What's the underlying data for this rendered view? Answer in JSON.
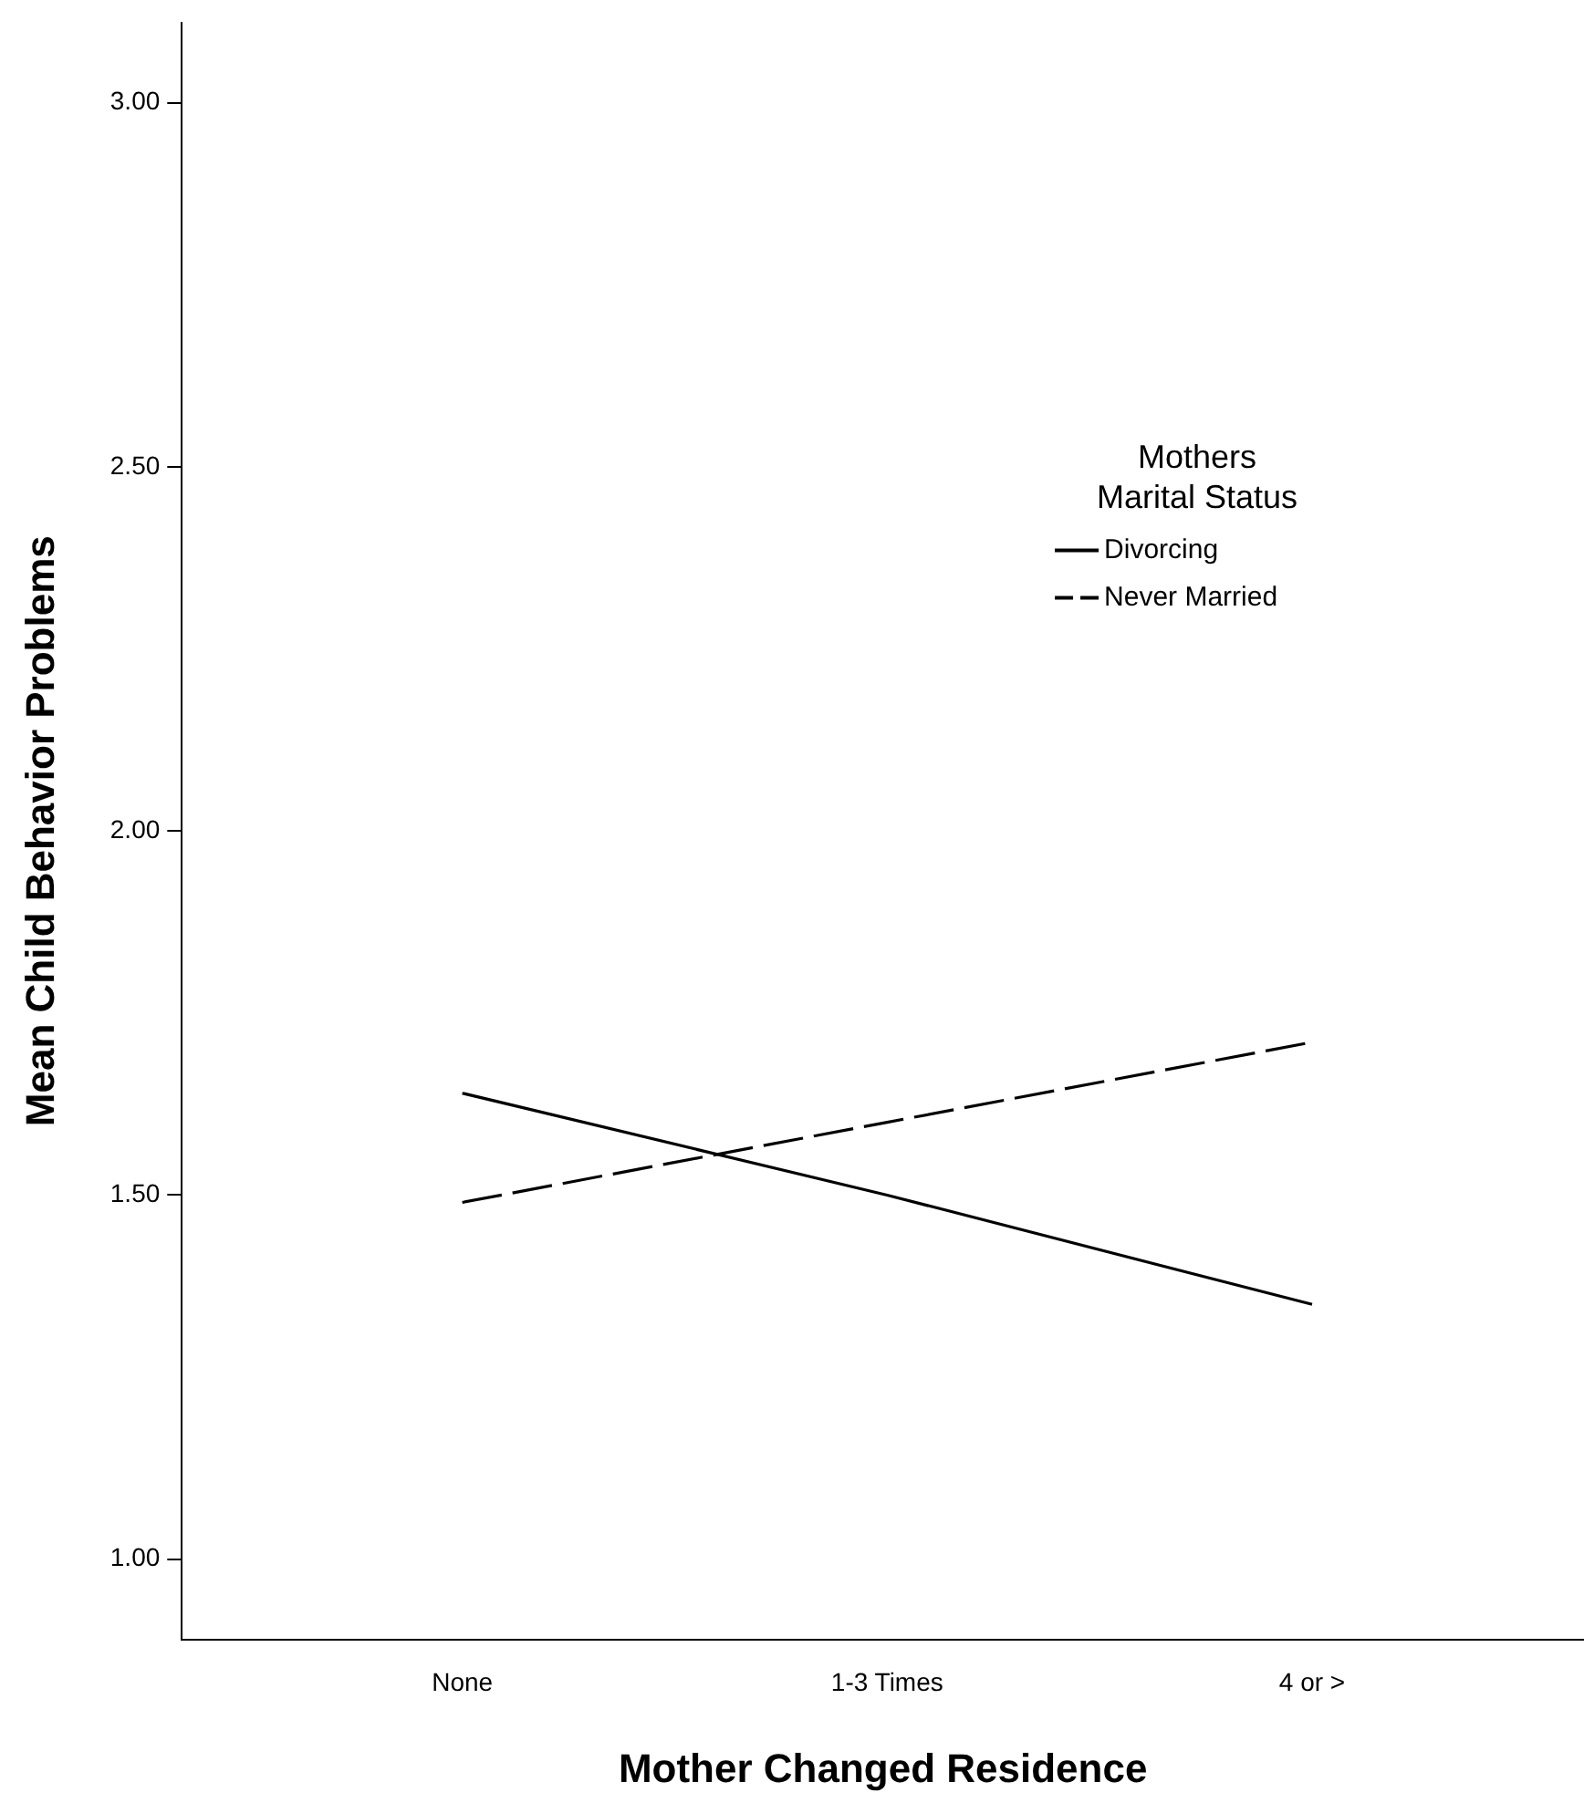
{
  "chart_data": {
    "type": "line",
    "xlabel": "Mother Changed Residence",
    "ylabel": "Mean Child Behavior Problems",
    "legend_title": "Mothers\nMarital Status",
    "categories": [
      "None",
      "1-3 Times",
      "4 or >"
    ],
    "series": [
      {
        "name": "Divorcing",
        "color": "#000000",
        "line_style": "solid",
        "values": [
          1.64,
          1.5,
          1.35
        ]
      },
      {
        "name": "Never Married",
        "color": "#000000",
        "line_style": "dashed",
        "values": [
          1.49,
          1.6,
          1.71
        ]
      }
    ],
    "ylim": [
      0.89,
      3.11
    ],
    "yticks": [
      {
        "value": 1,
        "label": "1.00"
      },
      {
        "value": 1.5,
        "label": "1.50"
      },
      {
        "value": 2,
        "label": "2.00"
      },
      {
        "value": 2.5,
        "label": "2.50"
      },
      {
        "value": 3,
        "label": "3.00"
      }
    ],
    "grid": false,
    "legend": "right",
    "marker": "none"
  }
}
